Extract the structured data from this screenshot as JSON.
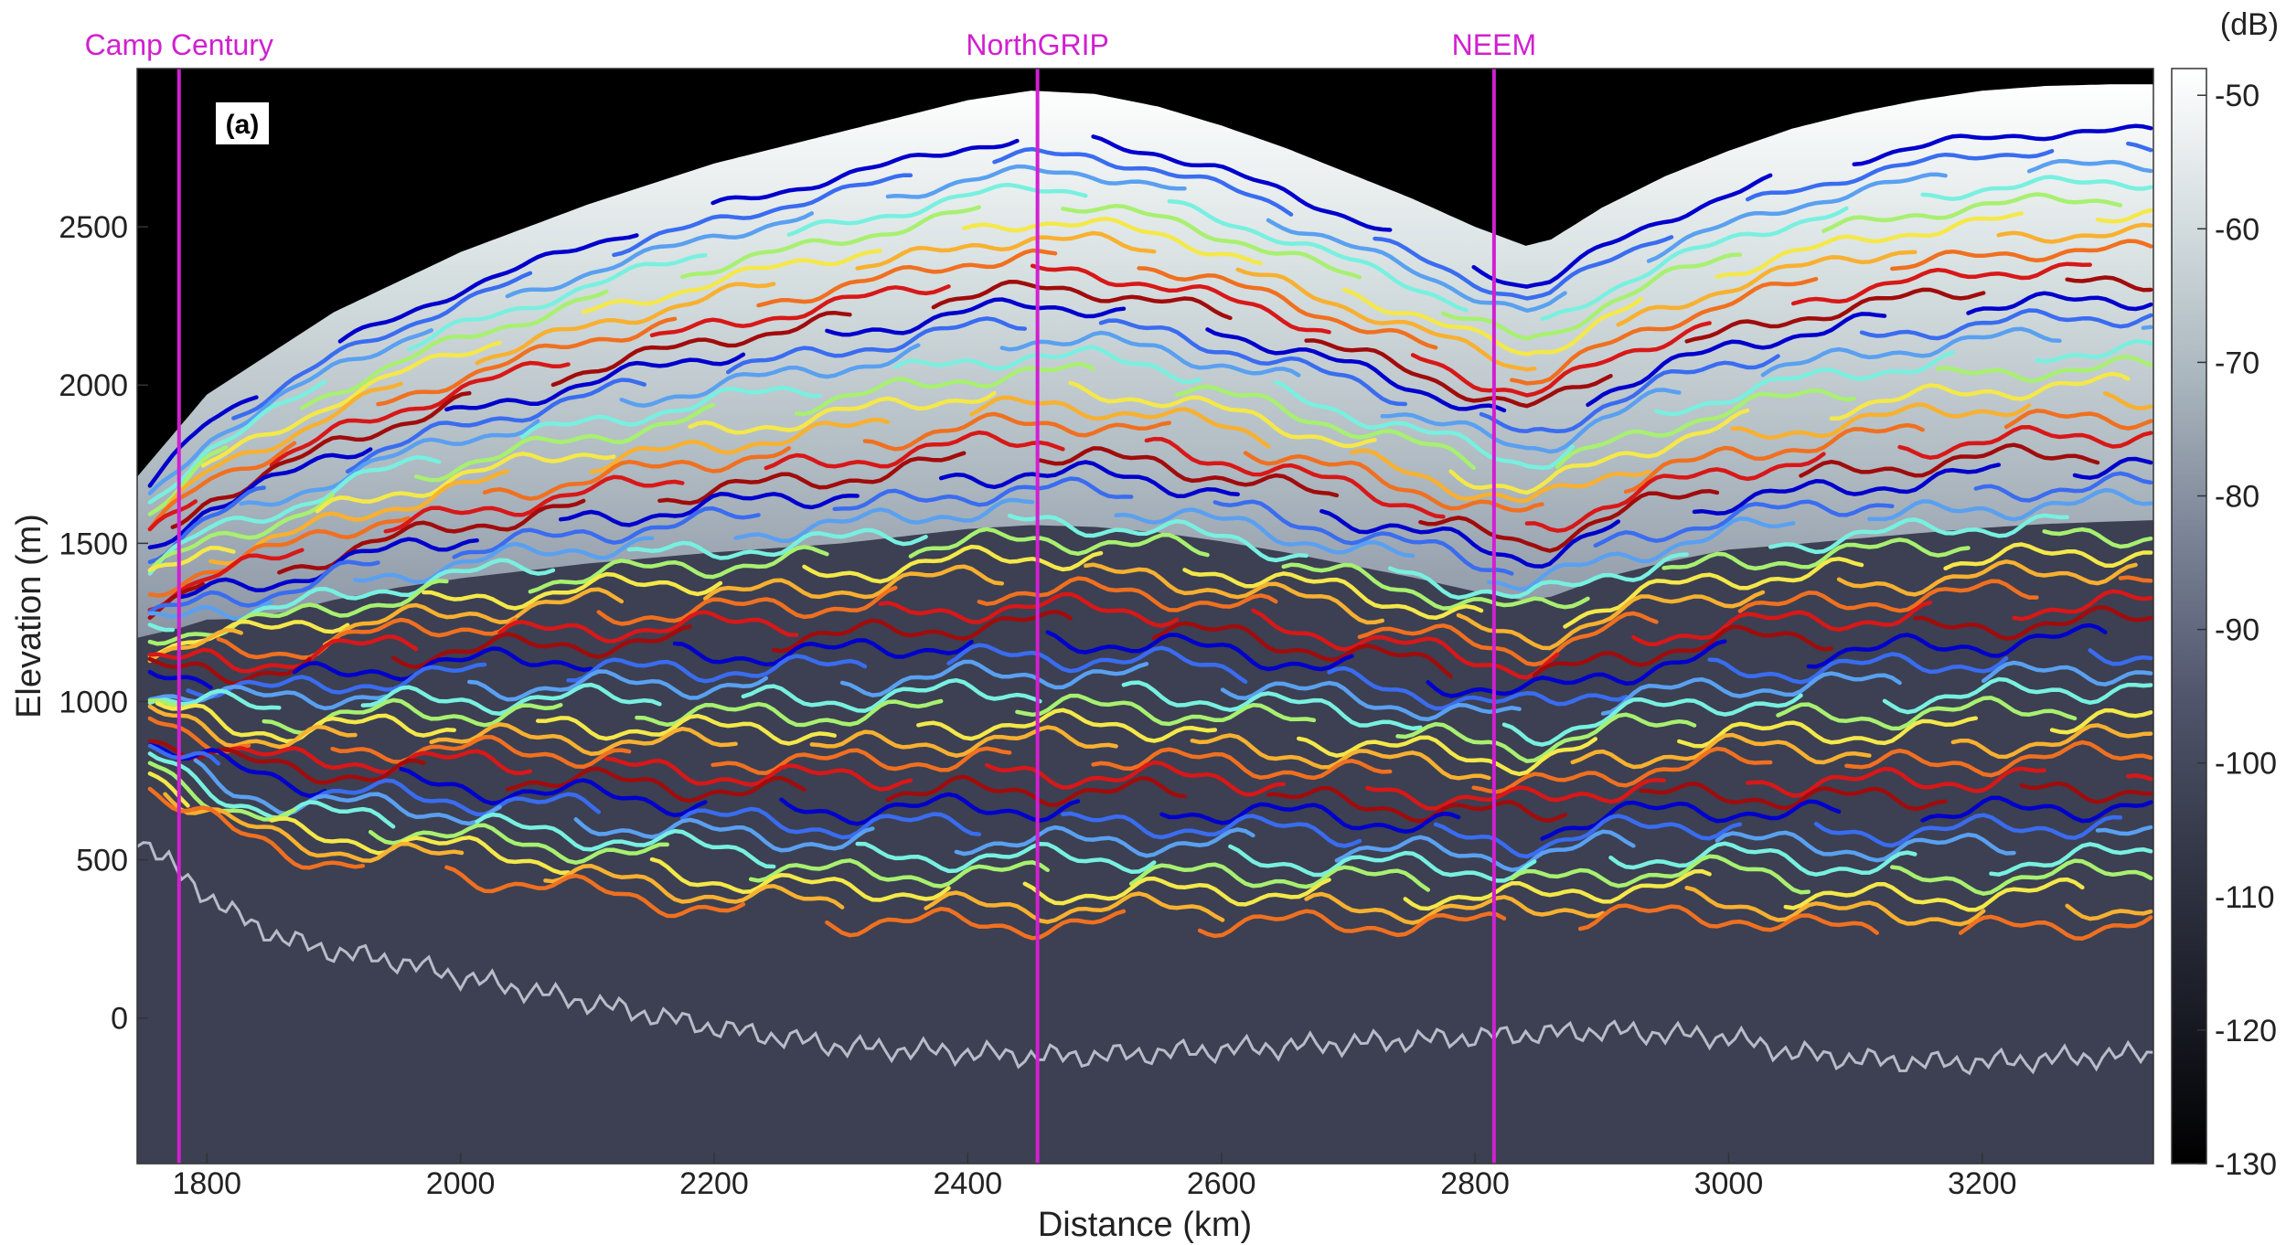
{
  "chart_data": {
    "type": "radargram",
    "panel_label": "(a)",
    "xlabel": "Distance (km)",
    "ylabel": "Elevation (m)",
    "xlim": [
      1745,
      3335
    ],
    "ylim": [
      -460,
      3000
    ],
    "x_ticks": [
      1800,
      2000,
      2200,
      2400,
      2600,
      2800,
      3000,
      3200
    ],
    "y_ticks": [
      0,
      500,
      1000,
      1500,
      2000,
      2500
    ],
    "colorbar": {
      "unit": "(dB)",
      "range": [
        -130,
        -48
      ],
      "ticks": [
        -50,
        -60,
        -70,
        -80,
        -90,
        -100,
        -110,
        -120,
        -130
      ],
      "colormap": [
        "#000000",
        "#1a1c26",
        "#343848",
        "#51566d",
        "#7a8396",
        "#a9b5bd",
        "#d3dcdf",
        "#ffffff"
      ]
    },
    "sites": [
      {
        "name": "Camp Century",
        "x": 1778
      },
      {
        "name": "NorthGRIP",
        "x": 2455
      },
      {
        "name": "NEEM",
        "x": 2815
      }
    ],
    "site_color": "#d020d0",
    "surface_elevation": {
      "x": [
        1745,
        1800,
        1900,
        2000,
        2100,
        2200,
        2300,
        2400,
        2450,
        2500,
        2550,
        2600,
        2650,
        2700,
        2750,
        2800,
        2840,
        2860,
        2900,
        2950,
        3000,
        3050,
        3100,
        3150,
        3200,
        3250,
        3300,
        3335
      ],
      "y": [
        1710,
        1970,
        2230,
        2420,
        2570,
        2700,
        2800,
        2900,
        2930,
        2920,
        2880,
        2820,
        2750,
        2670,
        2590,
        2500,
        2440,
        2460,
        2560,
        2660,
        2740,
        2810,
        2860,
        2900,
        2930,
        2945,
        2950,
        2950
      ]
    },
    "bed_elevation": {
      "x": [
        1745,
        1780,
        1820,
        1860,
        1900,
        1950,
        2000,
        2050,
        2100,
        2150,
        2200,
        2250,
        2300,
        2350,
        2400,
        2450,
        2500,
        2550,
        2600,
        2650,
        2700,
        2750,
        2800,
        2850,
        2900,
        2950,
        3000,
        3050,
        3100,
        3150,
        3200,
        3250,
        3300,
        3335
      ],
      "y": [
        580,
        450,
        330,
        250,
        210,
        180,
        130,
        90,
        50,
        10,
        -30,
        -60,
        -90,
        -100,
        -110,
        -120,
        -120,
        -110,
        -100,
        -90,
        -80,
        -70,
        -60,
        -50,
        -40,
        -50,
        -60,
        -110,
        -130,
        -140,
        -140,
        -130,
        -120,
        -110
      ]
    },
    "layer_colors": [
      "#0000cd",
      "#3a6cf0",
      "#5aa0f0",
      "#78f0e0",
      "#a8f070",
      "#f4e84a",
      "#f8b030",
      "#f07020",
      "#d81818",
      "#a00c0c"
    ],
    "layer_count": 48
  }
}
